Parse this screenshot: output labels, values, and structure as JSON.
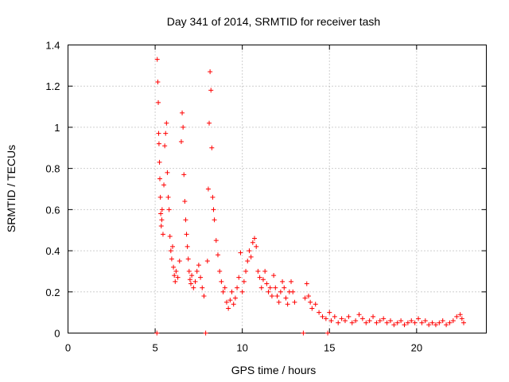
{
  "chart_data": {
    "type": "scatter",
    "title": "Day 341 of 2014, SRMTID for receiver tash",
    "xlabel": "GPS time / hours",
    "ylabel": "SRMTID / TECUs",
    "xlim": [
      0,
      24
    ],
    "ylim": [
      0,
      1.4
    ],
    "xticks": [
      0,
      5,
      10,
      15,
      20
    ],
    "yticks": [
      0,
      0.2,
      0.4,
      0.6,
      0.8,
      1,
      1.2,
      1.4
    ],
    "xtick_labels": [
      "0",
      "5",
      "10",
      "15",
      "20"
    ],
    "ytick_labels": [
      "0",
      "0.2",
      "0.4",
      "0.6",
      "0.8",
      "1",
      "1.2",
      "1.4"
    ],
    "grid": true,
    "marker": "+",
    "color": "#ff0000",
    "series": [
      {
        "name": "SRMTID",
        "points": [
          [
            5.1,
            0.0
          ],
          [
            5.12,
            1.33
          ],
          [
            5.15,
            1.22
          ],
          [
            5.18,
            1.12
          ],
          [
            5.2,
            0.97
          ],
          [
            5.22,
            0.92
          ],
          [
            5.25,
            0.83
          ],
          [
            5.27,
            0.75
          ],
          [
            5.3,
            0.66
          ],
          [
            5.32,
            0.58
          ],
          [
            5.35,
            0.52
          ],
          [
            5.38,
            0.55
          ],
          [
            5.4,
            0.6
          ],
          [
            5.45,
            0.48
          ],
          [
            5.5,
            0.72
          ],
          [
            5.55,
            0.91
          ],
          [
            5.6,
            0.97
          ],
          [
            5.65,
            1.02
          ],
          [
            5.7,
            0.78
          ],
          [
            5.75,
            0.66
          ],
          [
            5.8,
            0.6
          ],
          [
            5.85,
            0.47
          ],
          [
            5.9,
            0.4
          ],
          [
            5.95,
            0.36
          ],
          [
            6.0,
            0.42
          ],
          [
            6.05,
            0.32
          ],
          [
            6.1,
            0.28
          ],
          [
            6.15,
            0.25
          ],
          [
            6.2,
            0.3
          ],
          [
            6.3,
            0.27
          ],
          [
            6.4,
            0.35
          ],
          [
            6.5,
            0.93
          ],
          [
            6.55,
            1.07
          ],
          [
            6.6,
            1.0
          ],
          [
            6.65,
            0.77
          ],
          [
            6.7,
            0.64
          ],
          [
            6.75,
            0.55
          ],
          [
            6.8,
            0.48
          ],
          [
            6.85,
            0.42
          ],
          [
            6.9,
            0.36
          ],
          [
            6.95,
            0.3
          ],
          [
            7.0,
            0.26
          ],
          [
            7.05,
            0.24
          ],
          [
            7.1,
            0.28
          ],
          [
            7.2,
            0.22
          ],
          [
            7.3,
            0.25
          ],
          [
            7.4,
            0.3
          ],
          [
            7.5,
            0.33
          ],
          [
            7.6,
            0.27
          ],
          [
            7.7,
            0.22
          ],
          [
            7.8,
            0.18
          ],
          [
            7.9,
            0.0
          ],
          [
            8.0,
            0.35
          ],
          [
            8.05,
            0.7
          ],
          [
            8.1,
            1.02
          ],
          [
            8.15,
            1.27
          ],
          [
            8.2,
            1.18
          ],
          [
            8.25,
            0.9
          ],
          [
            8.3,
            0.66
          ],
          [
            8.35,
            0.6
          ],
          [
            8.4,
            0.55
          ],
          [
            8.5,
            0.45
          ],
          [
            8.6,
            0.38
          ],
          [
            8.7,
            0.3
          ],
          [
            8.8,
            0.25
          ],
          [
            8.9,
            0.2
          ],
          [
            9.0,
            0.22
          ],
          [
            9.1,
            0.15
          ],
          [
            9.2,
            0.12
          ],
          [
            9.3,
            0.16
          ],
          [
            9.4,
            0.2
          ],
          [
            9.5,
            0.14
          ],
          [
            9.6,
            0.17
          ],
          [
            9.7,
            0.22
          ],
          [
            9.8,
            0.27
          ],
          [
            9.9,
            0.39
          ],
          [
            10.0,
            0.2
          ],
          [
            10.1,
            0.25
          ],
          [
            10.2,
            0.3
          ],
          [
            10.3,
            0.35
          ],
          [
            10.4,
            0.4
          ],
          [
            10.5,
            0.37
          ],
          [
            10.6,
            0.44
          ],
          [
            10.7,
            0.46
          ],
          [
            10.8,
            0.42
          ],
          [
            10.9,
            0.3
          ],
          [
            11.0,
            0.27
          ],
          [
            11.1,
            0.22
          ],
          [
            11.2,
            0.26
          ],
          [
            11.3,
            0.3
          ],
          [
            11.4,
            0.24
          ],
          [
            11.5,
            0.2
          ],
          [
            11.6,
            0.22
          ],
          [
            11.7,
            0.18
          ],
          [
            11.8,
            0.28
          ],
          [
            11.9,
            0.22
          ],
          [
            12.0,
            0.18
          ],
          [
            12.1,
            0.15
          ],
          [
            12.2,
            0.2
          ],
          [
            12.3,
            0.25
          ],
          [
            12.4,
            0.22
          ],
          [
            12.5,
            0.17
          ],
          [
            12.6,
            0.14
          ],
          [
            12.7,
            0.2
          ],
          [
            12.8,
            0.25
          ],
          [
            12.9,
            0.2
          ],
          [
            13.0,
            0.15
          ],
          [
            13.5,
            0.0
          ],
          [
            13.6,
            0.17
          ],
          [
            13.7,
            0.24
          ],
          [
            13.8,
            0.18
          ],
          [
            13.9,
            0.15
          ],
          [
            14.0,
            0.12
          ],
          [
            14.2,
            0.14
          ],
          [
            14.4,
            0.1
          ],
          [
            14.6,
            0.08
          ],
          [
            14.8,
            0.07
          ],
          [
            14.9,
            0.0
          ],
          [
            15.0,
            0.1
          ],
          [
            15.1,
            0.06
          ],
          [
            15.3,
            0.08
          ],
          [
            15.5,
            0.05
          ],
          [
            15.7,
            0.07
          ],
          [
            15.9,
            0.06
          ],
          [
            16.1,
            0.08
          ],
          [
            16.3,
            0.05
          ],
          [
            16.5,
            0.06
          ],
          [
            16.7,
            0.09
          ],
          [
            16.9,
            0.07
          ],
          [
            17.1,
            0.05
          ],
          [
            17.3,
            0.06
          ],
          [
            17.5,
            0.08
          ],
          [
            17.7,
            0.05
          ],
          [
            17.9,
            0.06
          ],
          [
            18.1,
            0.07
          ],
          [
            18.3,
            0.05
          ],
          [
            18.5,
            0.06
          ],
          [
            18.7,
            0.04
          ],
          [
            18.9,
            0.05
          ],
          [
            19.1,
            0.06
          ],
          [
            19.3,
            0.04
          ],
          [
            19.5,
            0.05
          ],
          [
            19.7,
            0.06
          ],
          [
            19.9,
            0.05
          ],
          [
            20.1,
            0.07
          ],
          [
            20.3,
            0.05
          ],
          [
            20.5,
            0.06
          ],
          [
            20.7,
            0.04
          ],
          [
            20.9,
            0.05
          ],
          [
            21.1,
            0.04
          ],
          [
            21.3,
            0.05
          ],
          [
            21.5,
            0.06
          ],
          [
            21.7,
            0.04
          ],
          [
            21.9,
            0.05
          ],
          [
            22.1,
            0.06
          ],
          [
            22.3,
            0.08
          ],
          [
            22.5,
            0.09
          ],
          [
            22.6,
            0.07
          ],
          [
            22.7,
            0.05
          ]
        ]
      }
    ]
  }
}
